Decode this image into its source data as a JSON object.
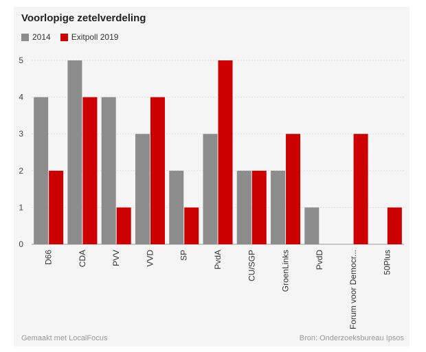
{
  "title": "Voorlopige zetelverdeling",
  "footer": {
    "left": "Gemaakt met LocalFocus",
    "right": "Bron: Onderzoeksbureau Ipsos"
  },
  "colors": {
    "series_2014": "#8c8c8c",
    "series_exitpoll": "#cc0000",
    "background": "#f5f5f5"
  },
  "chart_data": {
    "type": "bar",
    "title": "Voorlopige zetelverdeling",
    "categories": [
      "D66",
      "CDA",
      "PVV",
      "VVD",
      "SP",
      "PvdA",
      "CU/SGP",
      "GroenLinks",
      "PvdD",
      "Forum voor Democr...",
      "50Plus"
    ],
    "series": [
      {
        "name": "2014",
        "color": "#8c8c8c",
        "values": [
          4,
          5,
          4,
          3,
          2,
          3,
          2,
          2,
          1,
          0,
          0
        ]
      },
      {
        "name": "Exitpoll 2019",
        "color": "#cc0000",
        "values": [
          2,
          4,
          1,
          4,
          1,
          5,
          2,
          3,
          0,
          3,
          1
        ]
      }
    ],
    "yticks": [
      0,
      1,
      2,
      3,
      4,
      5
    ],
    "ylim": [
      0,
      5
    ],
    "grid": true,
    "legend_position": "top-left"
  }
}
